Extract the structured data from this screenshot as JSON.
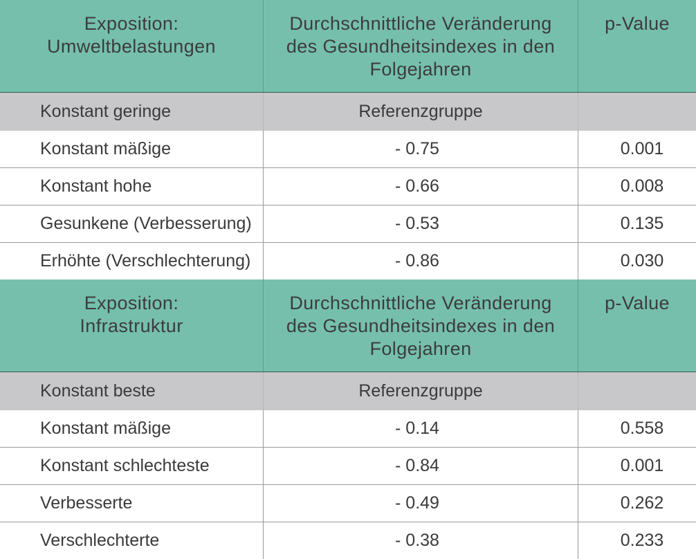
{
  "sections": [
    {
      "header": {
        "col1_line1": "Exposition:",
        "col1_line2": "Umweltbelastungen",
        "col2_line1": "Durchschnittliche Veränderung",
        "col2_line2": "des Gesundheitsindexes in den",
        "col2_line3": "Folgejahren",
        "col3": "p-Value"
      },
      "reference": {
        "label": "Konstant geringe",
        "value": "Referenzgruppe",
        "p": ""
      },
      "rows": [
        {
          "label": "Konstant mäßige",
          "value": "- 0.75",
          "p": "0.001"
        },
        {
          "label": "Konstant hohe",
          "value": "- 0.66",
          "p": "0.008"
        },
        {
          "label": "Gesunkene (Verbesserung)",
          "value": "- 0.53",
          "p": "0.135"
        },
        {
          "label": "Erhöhte (Verschlechterung)",
          "value": "- 0.86",
          "p": "0.030"
        }
      ]
    },
    {
      "header": {
        "col1_line1": "Exposition:",
        "col1_line2": "Infrastruktur",
        "col2_line1": "Durchschnittliche Veränderung",
        "col2_line2": "des Gesundheitsindexes in den",
        "col2_line3": "Folgejahren",
        "col3": "p-Value"
      },
      "reference": {
        "label": "Konstant beste",
        "value": "Referenzgruppe",
        "p": ""
      },
      "rows": [
        {
          "label": "Konstant mäßige",
          "value": "- 0.14",
          "p": "0.558"
        },
        {
          "label": "Konstant schlechteste",
          "value": "- 0.84",
          "p": "0.001"
        },
        {
          "label": "Verbesserte",
          "value": "- 0.49",
          "p": "0.262"
        },
        {
          "label": "Verschlechterte",
          "value": "- 0.38",
          "p": "0.233"
        }
      ]
    }
  ],
  "colors": {
    "header_bg": "#76bfad",
    "reference_bg": "#c8c8ca",
    "text": "#3c3c3c"
  }
}
